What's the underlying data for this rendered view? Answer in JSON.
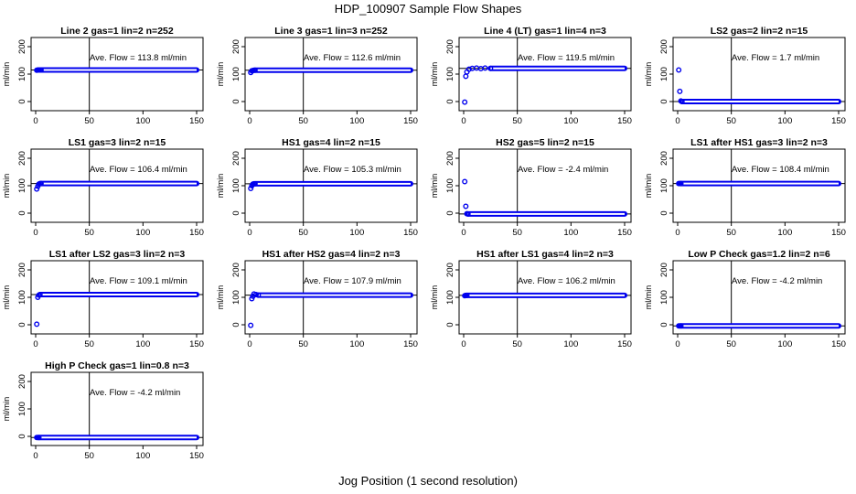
{
  "title": "HDP_100907  Sample Flow Shapes",
  "xlabel": "Jog Position (1 second resolution)",
  "ylabel": "ml/min",
  "colors": {
    "points": "#0000ee",
    "axes": "#000000"
  },
  "chart_data": [
    {
      "type": "scatter",
      "title": "Line 2 gas=1 lin=2 n=252",
      "annotation": "Ave. Flow =  113.8  ml/min",
      "xlim": [
        0,
        150
      ],
      "ylim": [
        -20,
        220
      ],
      "vline": 50,
      "hline": 115,
      "yticks": [
        0,
        100,
        200
      ],
      "xticks": [
        0,
        50,
        100,
        150
      ],
      "points": [
        [
          1,
          114
        ],
        [
          2,
          115
        ],
        [
          3,
          115
        ],
        [
          4,
          115
        ],
        [
          5,
          115
        ]
      ],
      "level": 115
    },
    {
      "type": "scatter",
      "title": "Line 3 gas=1 lin=3 n=252",
      "annotation": "Ave. Flow =  112.6  ml/min",
      "xlim": [
        0,
        150
      ],
      "ylim": [
        -20,
        220
      ],
      "vline": 50,
      "hline": 114,
      "yticks": [
        0,
        100,
        200
      ],
      "xticks": [
        0,
        50,
        100,
        150
      ],
      "points": [
        [
          1,
          106
        ],
        [
          2,
          112
        ],
        [
          3,
          113
        ],
        [
          4,
          114
        ],
        [
          5,
          114
        ]
      ],
      "level": 114
    },
    {
      "type": "scatter",
      "title": "Line 4 (LT) gas=1 lin=4 n=3",
      "annotation": "Ave. Flow =  119.5  ml/min",
      "xlim": [
        0,
        150
      ],
      "ylim": [
        -20,
        220
      ],
      "vline": 50,
      "hline": 121,
      "yticks": [
        0,
        100,
        200
      ],
      "xticks": [
        0,
        50,
        100,
        150
      ],
      "points": [
        [
          1,
          -2
        ],
        [
          2,
          92
        ],
        [
          3,
          108
        ],
        [
          5,
          118
        ],
        [
          8,
          121
        ],
        [
          12,
          122
        ],
        [
          16,
          120
        ],
        [
          20,
          122
        ],
        [
          25,
          121
        ]
      ],
      "level": 121
    },
    {
      "type": "scatter",
      "title": "LS2 gas=2 lin=2 n=15",
      "annotation": "Ave. Flow =  1.7  ml/min",
      "xlim": [
        0,
        150
      ],
      "ylim": [
        -20,
        220
      ],
      "vline": 50,
      "hline": 0,
      "yticks": [
        0,
        100,
        200
      ],
      "xticks": [
        0,
        50,
        100,
        150
      ],
      "points": [
        [
          1,
          115
        ],
        [
          2,
          37
        ],
        [
          3,
          2
        ],
        [
          4,
          0
        ]
      ],
      "level": 0
    },
    {
      "type": "scatter",
      "title": "LS1 gas=3 lin=2 n=15",
      "annotation": "Ave. Flow =  106.4  ml/min",
      "xlim": [
        0,
        150
      ],
      "ylim": [
        -20,
        220
      ],
      "vline": 50,
      "hline": 108,
      "yticks": [
        0,
        100,
        200
      ],
      "xticks": [
        0,
        50,
        100,
        150
      ],
      "points": [
        [
          1,
          88
        ],
        [
          2,
          98
        ],
        [
          3,
          106
        ],
        [
          4,
          108
        ],
        [
          5,
          108
        ]
      ],
      "level": 108
    },
    {
      "type": "scatter",
      "title": "HS1 gas=4 lin=2 n=15",
      "annotation": "Ave. Flow =  105.3  ml/min",
      "xlim": [
        0,
        150
      ],
      "ylim": [
        -20,
        220
      ],
      "vline": 50,
      "hline": 107,
      "yticks": [
        0,
        100,
        200
      ],
      "xticks": [
        0,
        50,
        100,
        150
      ],
      "points": [
        [
          1,
          90
        ],
        [
          2,
          100
        ],
        [
          3,
          106
        ],
        [
          4,
          107
        ],
        [
          5,
          107
        ]
      ],
      "level": 107
    },
    {
      "type": "scatter",
      "title": "HS2 gas=5 lin=2 n=15",
      "annotation": "Ave. Flow =  -2.4  ml/min",
      "xlim": [
        0,
        150
      ],
      "ylim": [
        -20,
        220
      ],
      "vline": 50,
      "hline": -3,
      "yticks": [
        0,
        100,
        200
      ],
      "xticks": [
        0,
        50,
        100,
        150
      ],
      "points": [
        [
          1,
          115
        ],
        [
          2,
          25
        ],
        [
          3,
          -2
        ],
        [
          4,
          -3
        ]
      ],
      "level": -3
    },
    {
      "type": "scatter",
      "title": "LS1 after HS1 gas=3 lin=2 n=3",
      "annotation": "Ave. Flow =  108.4  ml/min",
      "xlim": [
        0,
        150
      ],
      "ylim": [
        -20,
        220
      ],
      "vline": 50,
      "hline": 108,
      "yticks": [
        0,
        100,
        200
      ],
      "xticks": [
        0,
        50,
        100,
        150
      ],
      "points": [
        [
          1,
          108
        ],
        [
          2,
          108
        ],
        [
          3,
          108
        ]
      ],
      "level": 108
    },
    {
      "type": "scatter",
      "title": "LS1 after LS2 gas=3 lin=2 n=3",
      "annotation": "Ave. Flow =  109.1  ml/min",
      "xlim": [
        0,
        150
      ],
      "ylim": [
        -20,
        220
      ],
      "vline": 50,
      "hline": 110,
      "yticks": [
        0,
        100,
        200
      ],
      "xticks": [
        0,
        50,
        100,
        150
      ],
      "points": [
        [
          1,
          2
        ],
        [
          2,
          100
        ],
        [
          3,
          108
        ],
        [
          4,
          110
        ]
      ],
      "level": 110
    },
    {
      "type": "scatter",
      "title": "HS1 after HS2 gas=4 lin=2 n=3",
      "annotation": "Ave. Flow =  107.9  ml/min",
      "xlim": [
        0,
        150
      ],
      "ylim": [
        -20,
        220
      ],
      "vline": 50,
      "hline": 108,
      "yticks": [
        0,
        100,
        200
      ],
      "xticks": [
        0,
        50,
        100,
        150
      ],
      "points": [
        [
          1,
          -2
        ],
        [
          2,
          95
        ],
        [
          3,
          104
        ],
        [
          4,
          112
        ],
        [
          6,
          110
        ],
        [
          8,
          108
        ]
      ],
      "level": 108
    },
    {
      "type": "scatter",
      "title": "HS1 after LS1 gas=4 lin=2 n=3",
      "annotation": "Ave. Flow =  106.2  ml/min",
      "xlim": [
        0,
        150
      ],
      "ylim": [
        -20,
        220
      ],
      "vline": 50,
      "hline": 107,
      "yticks": [
        0,
        100,
        200
      ],
      "xticks": [
        0,
        50,
        100,
        150
      ],
      "points": [
        [
          1,
          106
        ],
        [
          2,
          107
        ],
        [
          3,
          107
        ]
      ],
      "level": 107
    },
    {
      "type": "scatter",
      "title": "Low P Check gas=1.2 lin=2 n=6",
      "annotation": "Ave. Flow =  -4.2  ml/min",
      "xlim": [
        0,
        150
      ],
      "ylim": [
        -20,
        220
      ],
      "vline": 50,
      "hline": -4,
      "yticks": [
        0,
        100,
        200
      ],
      "xticks": [
        0,
        50,
        100,
        150
      ],
      "points": [
        [
          1,
          -4
        ],
        [
          2,
          -4
        ],
        [
          3,
          -4
        ]
      ],
      "level": -4
    },
    {
      "type": "scatter",
      "title": "High P Check gas=1 lin=0.8 n=3",
      "annotation": "Ave. Flow =  -4.2  ml/min",
      "xlim": [
        0,
        150
      ],
      "ylim": [
        -20,
        220
      ],
      "vline": 50,
      "hline": -4,
      "yticks": [
        0,
        100,
        200
      ],
      "xticks": [
        0,
        50,
        100,
        150
      ],
      "points": [
        [
          1,
          -4
        ],
        [
          2,
          -4
        ],
        [
          3,
          -4
        ]
      ],
      "level": -4
    }
  ]
}
